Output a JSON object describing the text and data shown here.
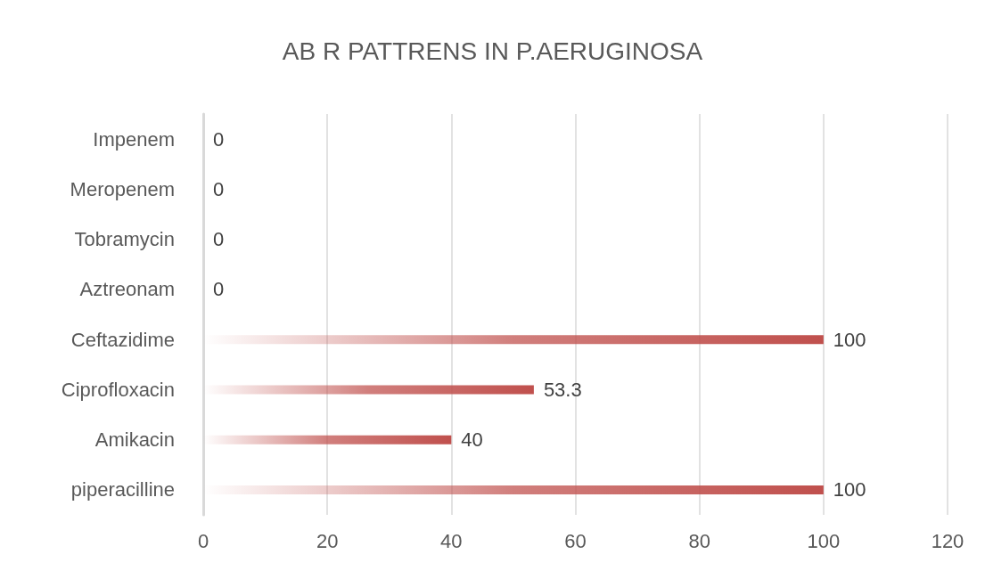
{
  "chart_data": {
    "type": "bar",
    "orientation": "horizontal",
    "title": "AB R PATTRENS IN P.AERUGINOSA",
    "categories": [
      "Impenem",
      "Meropenem",
      "Tobramycin",
      "Aztreonam",
      "Ceftazidime",
      "Ciprofloxacin",
      "Amikacin",
      "piperacilline"
    ],
    "values": [
      0,
      0,
      0,
      0,
      100,
      53.3,
      40,
      100
    ],
    "color": "#c0504d",
    "xlim": [
      0,
      120
    ],
    "xticks": [
      0,
      20,
      40,
      60,
      80,
      100,
      120
    ],
    "grid": "x",
    "data_labels": true
  }
}
